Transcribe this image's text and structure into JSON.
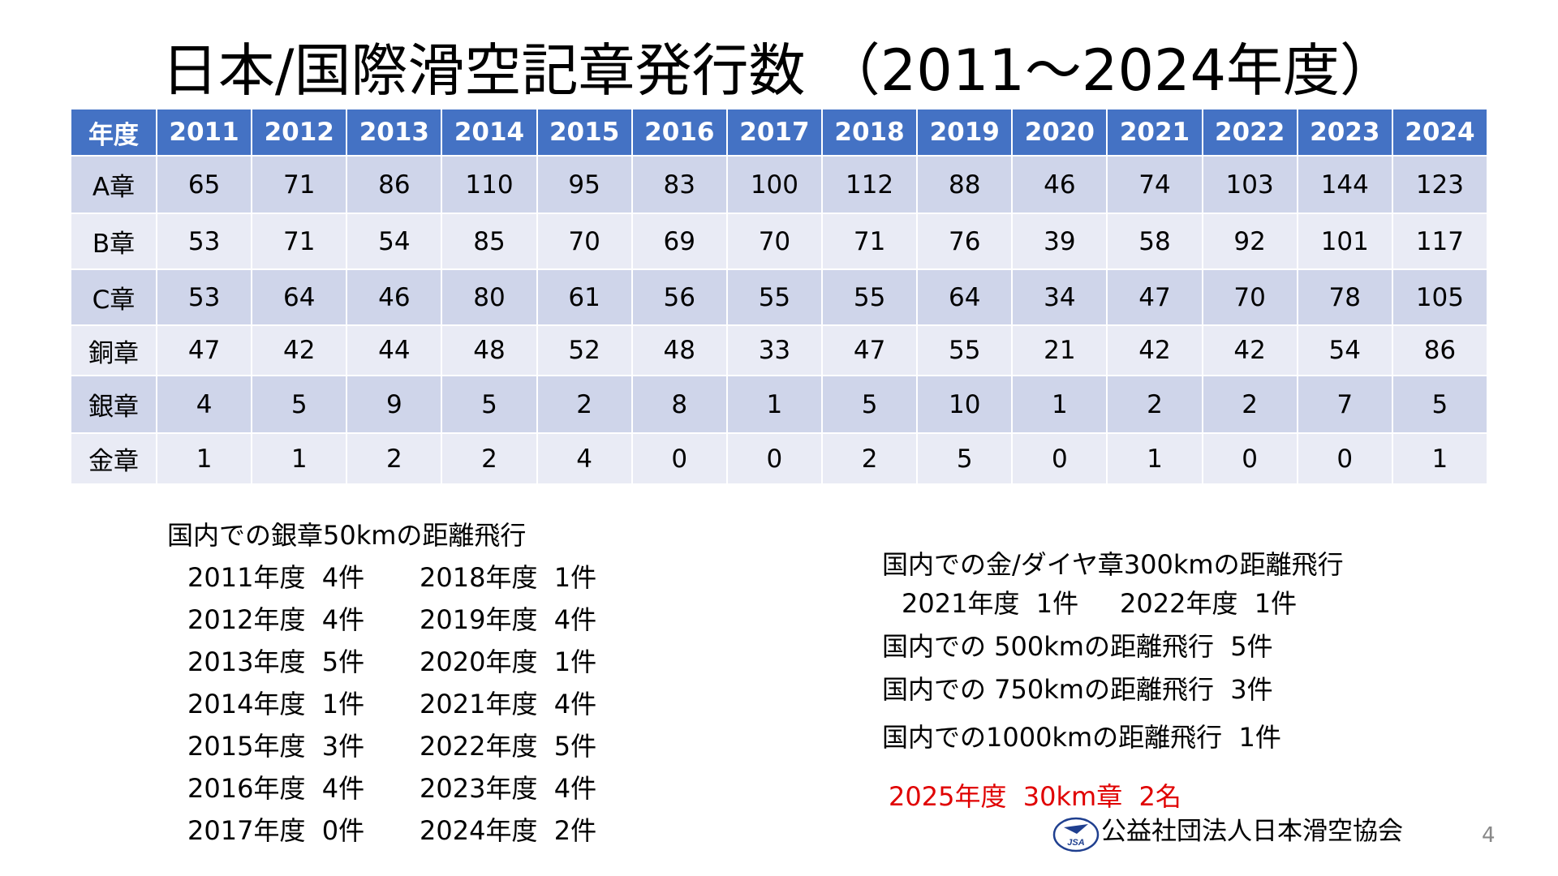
{
  "title": "日本/国際滑空記章発行数 （2011～2024年度）",
  "table": {
    "header": [
      "年度",
      "2011",
      "2012",
      "2013",
      "2014",
      "2015",
      "2016",
      "2017",
      "2018",
      "2019",
      "2020",
      "2021",
      "2022",
      "2023",
      "2024"
    ],
    "rows": [
      [
        "A章",
        65,
        71,
        86,
        110,
        95,
        83,
        100,
        112,
        88,
        46,
        74,
        103,
        144,
        123
      ],
      [
        "B章",
        53,
        71,
        54,
        85,
        70,
        69,
        70,
        71,
        76,
        39,
        58,
        92,
        101,
        117
      ],
      [
        "C章",
        53,
        64,
        46,
        80,
        61,
        56,
        55,
        55,
        64,
        34,
        47,
        70,
        78,
        105
      ],
      [
        "銅章",
        47,
        42,
        44,
        48,
        52,
        48,
        33,
        47,
        55,
        21,
        42,
        42,
        54,
        86
      ],
      [
        "銀章",
        4,
        5,
        9,
        5,
        2,
        8,
        1,
        5,
        10,
        1,
        2,
        2,
        7,
        5
      ],
      [
        "金章",
        1,
        1,
        2,
        2,
        4,
        0,
        0,
        2,
        5,
        0,
        1,
        0,
        0,
        1
      ]
    ]
  },
  "silver_distance": {
    "heading": "国内での銀章50kmの距離飛行",
    "rows": [
      [
        "2011年度  4件",
        "2018年度  1件"
      ],
      [
        "2012年度  4件",
        "2019年度  4件"
      ],
      [
        "2013年度  5件",
        "2020年度  1件"
      ],
      [
        "2014年度  1件",
        "2021年度  4件"
      ],
      [
        "2015年度  3件",
        "2022年度  5件"
      ],
      [
        "2016年度  4件",
        "2023年度  4件"
      ],
      [
        "2017年度  0件",
        "2024年度  2件"
      ]
    ]
  },
  "long_distance": {
    "heading": "国内での金/ダイヤ章300kmの距離飛行",
    "detail": "2021年度  1件     2022年度  1件",
    "lines": [
      "国内での 500kmの距離飛行  5件",
      "国内での 750kmの距離飛行  3件",
      "国内での1000kmの距離飛行  1件"
    ]
  },
  "note": "2025年度  30km章  2名",
  "footer": {
    "logo_text": "JSA",
    "organization": "公益社団法人日本滑空協会"
  },
  "page_number": "4"
}
